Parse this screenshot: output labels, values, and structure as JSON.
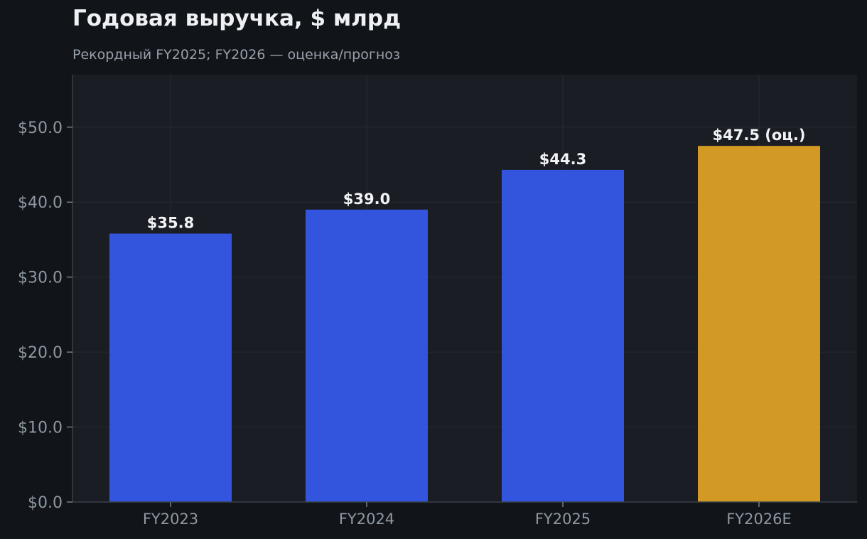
{
  "chart_data": {
    "type": "bar",
    "title": "Годовая выручка, $ млрд",
    "subtitle": "Рекордный FY2025; FY2026 — оценка/прогноз",
    "categories": [
      "FY2023",
      "FY2024",
      "FY2025",
      "FY2026E"
    ],
    "values": [
      35.8,
      39.0,
      44.3,
      47.5
    ],
    "data_labels": [
      "$35.8",
      "$39.0",
      "$44.3",
      "$47.5 (оц.)"
    ],
    "estimate_flags": [
      false,
      false,
      false,
      true
    ],
    "xlabel": "",
    "ylabel": "",
    "ylim": [
      0,
      57
    ],
    "yticks": [
      0,
      10,
      20,
      30,
      40,
      50
    ],
    "ytick_labels": [
      "$0.0",
      "$10.0",
      "$20.0",
      "$30.0",
      "$40.0",
      "$50.0"
    ],
    "grid": true,
    "legend": "none",
    "colors": {
      "actual": "#3355dd",
      "estimate": "#d29a24",
      "plot_background": "#1a1d24",
      "page_background": "#11151a",
      "grid": "#272b33",
      "tick_text": "#8f98a2",
      "data_label_text": "#f2f3f5"
    }
  }
}
